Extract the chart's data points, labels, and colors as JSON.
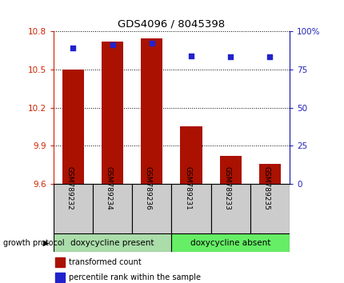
{
  "title": "GDS4096 / 8045398",
  "samples": [
    "GSM789232",
    "GSM789234",
    "GSM789236",
    "GSM789231",
    "GSM789233",
    "GSM789235"
  ],
  "transformed_counts": [
    10.5,
    10.72,
    10.74,
    10.05,
    9.82,
    9.76
  ],
  "percentile_ranks": [
    89,
    91,
    92,
    84,
    83,
    83
  ],
  "bar_baseline": 9.6,
  "ylim_left": [
    9.6,
    10.8
  ],
  "ylim_right": [
    0,
    100
  ],
  "yticks_left": [
    9.6,
    9.9,
    10.2,
    10.5,
    10.8
  ],
  "yticks_right": [
    0,
    25,
    50,
    75,
    100
  ],
  "bar_color": "#aa1100",
  "dot_color": "#2222cc",
  "group1_label": "doxycycline present",
  "group2_label": "doxycycline absent",
  "group1_color": "#aaddaa",
  "group2_color": "#66ee66",
  "group_bar_color": "#cccccc",
  "legend_bar_label": "transformed count",
  "legend_dot_label": "percentile rank within the sample",
  "growth_protocol_label": "growth protocol",
  "left_axis_color": "#cc2200",
  "right_axis_color": "#2222bb"
}
